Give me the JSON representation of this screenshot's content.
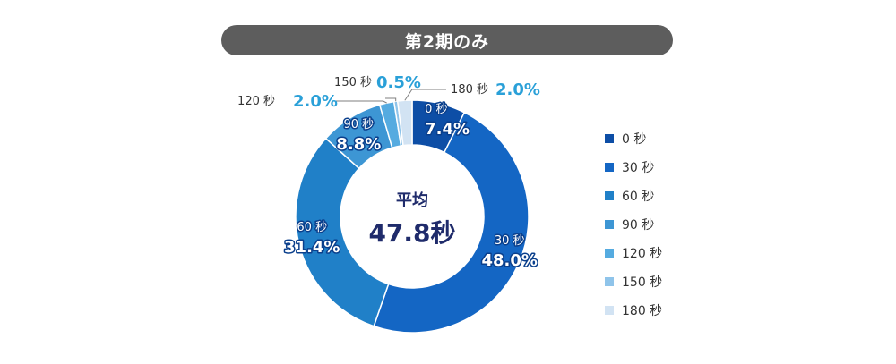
{
  "title": "第2期のみ",
  "center": {
    "label": "平均",
    "value": "47.8秒"
  },
  "colors": {
    "label_dark": "#1f2b6b",
    "label_outside": "#2aa0d8",
    "leader": "#7f7f7f"
  },
  "chart_data": {
    "type": "pie",
    "donut": true,
    "title": "第2期のみ",
    "categories": [
      "0 秒",
      "30 秒",
      "60 秒",
      "90 秒",
      "120 秒",
      "150 秒",
      "180 秒"
    ],
    "values": [
      7.4,
      48.0,
      31.4,
      8.8,
      2.0,
      0.5,
      2.0
    ],
    "value_labels": [
      "7.4%",
      "48.0%",
      "31.4%",
      "8.8%",
      "2.0%",
      "0.5%",
      "2.0%"
    ],
    "colors": [
      "#0d4ea6",
      "#1466c4",
      "#2080c8",
      "#3d96d4",
      "#55abe0",
      "#8fc4ea",
      "#d2e3f3"
    ],
    "label_placement": [
      "inside",
      "inside",
      "inside",
      "inside",
      "outside",
      "outside",
      "outside"
    ],
    "legend": {
      "position": "right",
      "entries": [
        "0 秒",
        "30 秒",
        "60 秒",
        "90 秒",
        "120 秒",
        "150 秒",
        "180 秒"
      ]
    },
    "center_text": {
      "label": "平均",
      "value": "47.8秒"
    }
  }
}
